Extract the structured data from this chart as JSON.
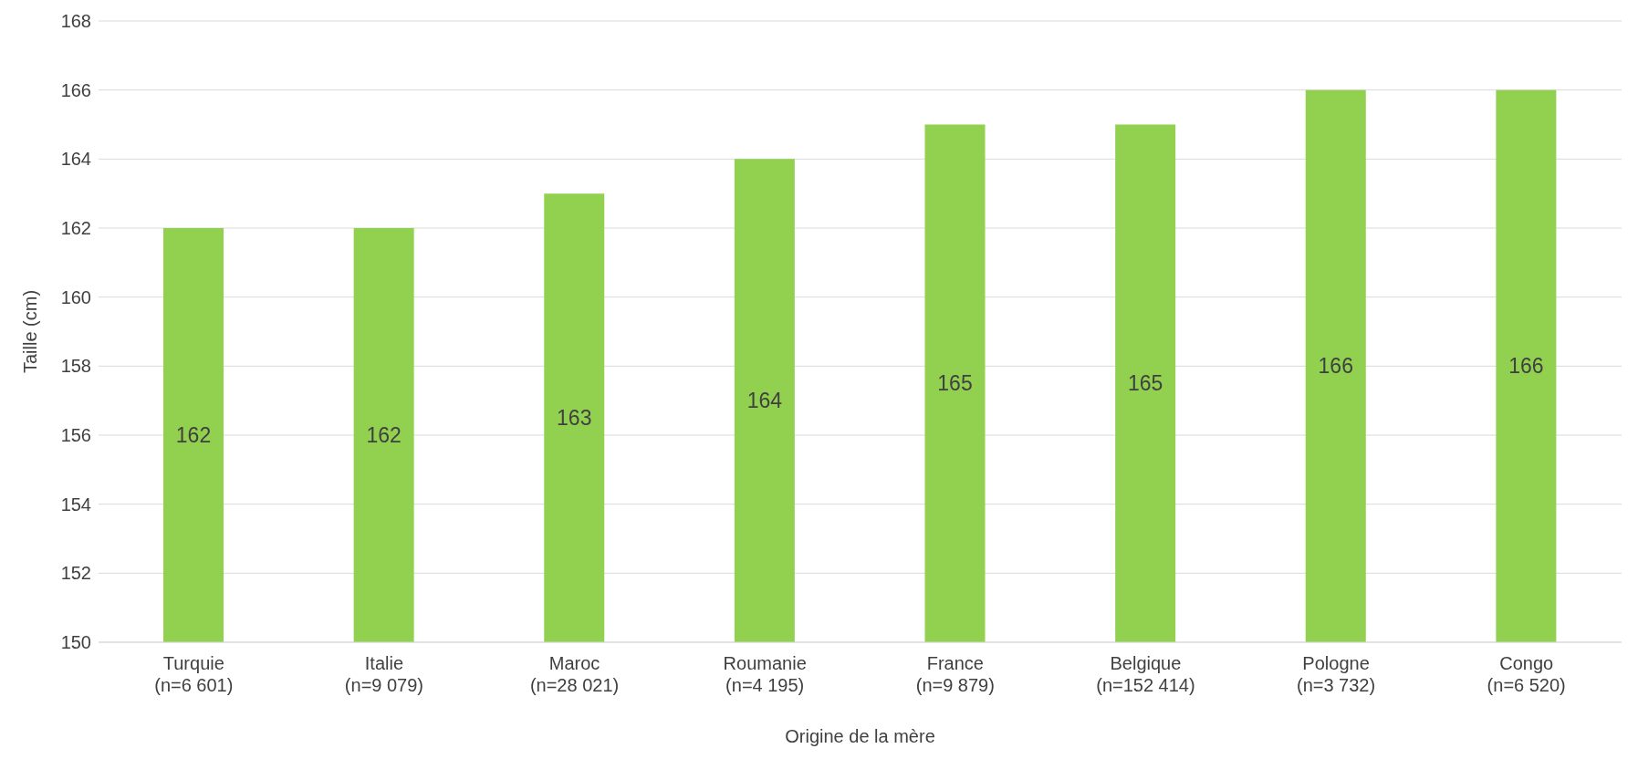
{
  "chart_data": {
    "type": "bar",
    "xlabel": "Origine de la mère",
    "ylabel": "Taille (cm)",
    "categories": [
      "Turquie\n(n=6 601)",
      "Italie\n(n=9 079)",
      "Maroc\n(n=28 021)",
      "Roumanie\n(n=4 195)",
      "France\n(n=9 879)",
      "Belgique\n(n=152 414)",
      "Pologne\n(n=3 732)",
      "Congo\n(n=6 520)"
    ],
    "values": [
      162,
      162,
      163,
      164,
      165,
      165,
      166,
      166
    ],
    "color": "#92d050",
    "ylim": [
      150,
      168
    ],
    "yticks": [
      150,
      152,
      154,
      156,
      158,
      160,
      162,
      164,
      166,
      168
    ],
    "grid": "y",
    "data_labels": true
  }
}
